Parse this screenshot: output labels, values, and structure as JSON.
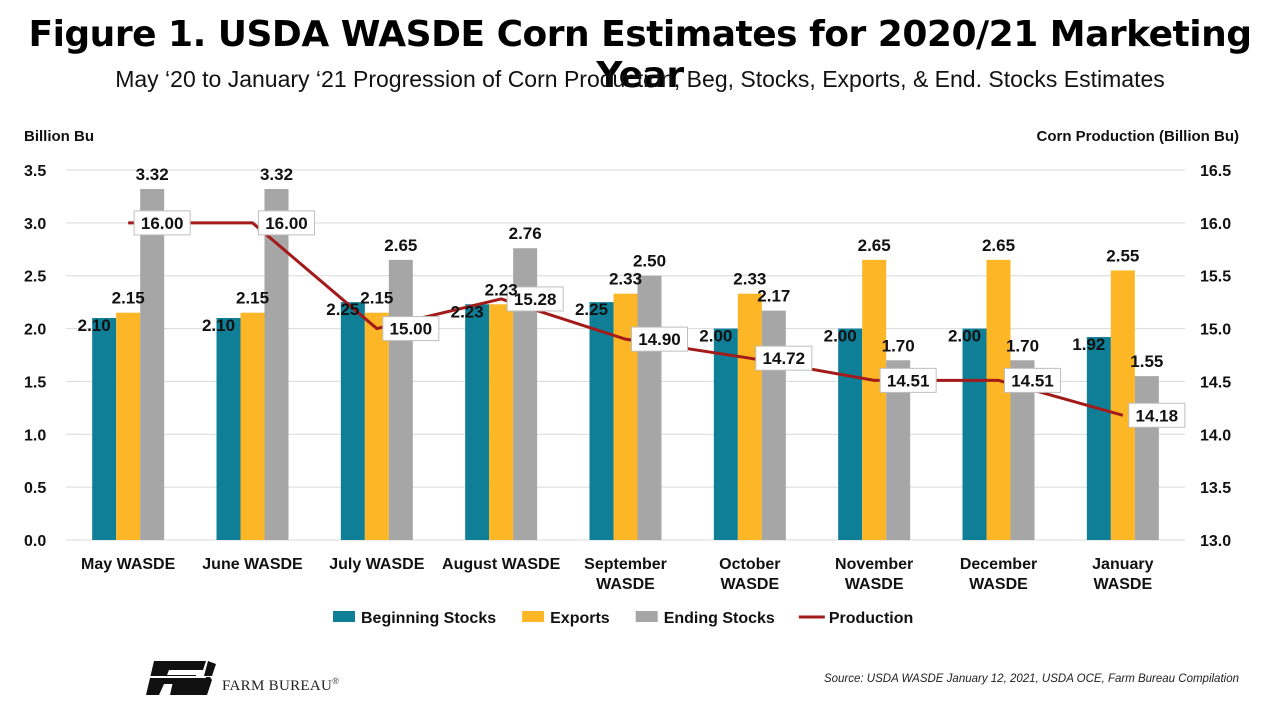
{
  "header": {
    "title": "Figure 1. USDA WASDE Corn Estimates for 2020/21 Marketing Year",
    "subtitle": "May ‘20 to January ‘21 Progression of Corn Production, Beg, Stocks, Exports, & End. Stocks Estimates"
  },
  "footer": {
    "brand": "FARM BUREAU",
    "registered_mark": "®",
    "source": "Source: USDA WASDE January 12, 2021, USDA OCE, Farm Bureau Compilation"
  },
  "chart_data": {
    "type": "bar",
    "categories": [
      [
        "May WASDE"
      ],
      [
        "June WASDE"
      ],
      [
        "July WASDE"
      ],
      [
        "August WASDE"
      ],
      [
        "September",
        "WASDE"
      ],
      [
        "October",
        "WASDE"
      ],
      [
        "November",
        "WASDE"
      ],
      [
        "December",
        "WASDE"
      ],
      [
        "January",
        "WASDE"
      ]
    ],
    "ylabel_left": "Billion Bu",
    "ylabel_right": "Corn Production (Billion Bu)",
    "ylim_left": [
      0,
      3.5
    ],
    "yticks_left": [
      "0.0",
      "0.5",
      "1.0",
      "1.5",
      "2.0",
      "2.5",
      "3.0",
      "3.5"
    ],
    "ylim_right": [
      13,
      16.5
    ],
    "yticks_right": [
      "13.0",
      "13.5",
      "14.0",
      "14.5",
      "15.0",
      "15.5",
      "16.0",
      "16.5"
    ],
    "grid": "horizontal",
    "legend_position": "bottom",
    "series": [
      {
        "name": "Beginning Stocks",
        "kind": "bar",
        "axis": "left",
        "color": "#0f7f98",
        "values": [
          2.1,
          2.1,
          2.25,
          2.23,
          2.25,
          2.0,
          2.0,
          2.0,
          1.92
        ]
      },
      {
        "name": "Exports",
        "kind": "bar",
        "axis": "left",
        "color": "#fdb626",
        "values": [
          2.15,
          2.15,
          2.15,
          2.23,
          2.33,
          2.33,
          2.65,
          2.65,
          2.55
        ]
      },
      {
        "name": "Ending Stocks",
        "kind": "bar",
        "axis": "left",
        "color": "#a6a6a6",
        "values": [
          3.32,
          3.32,
          2.65,
          2.76,
          2.5,
          2.17,
          1.7,
          1.7,
          1.55
        ]
      },
      {
        "name": "Production",
        "kind": "line",
        "axis": "right",
        "color": "#a31a1a",
        "values": [
          16.0,
          16.0,
          15.0,
          15.28,
          14.9,
          14.72,
          14.51,
          14.51,
          14.18
        ]
      }
    ]
  }
}
